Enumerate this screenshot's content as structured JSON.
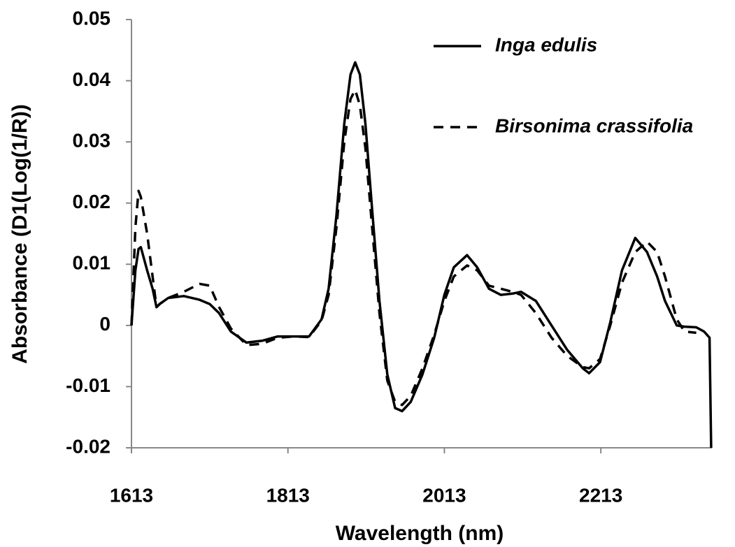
{
  "chart_data": {
    "type": "line",
    "x_label": "Wavelength (nm)",
    "y_label": "Absorbance (D1(Log(1/R))",
    "x": [
      1613,
      1618,
      1622,
      1625,
      1633,
      1640,
      1645,
      1649,
      1660,
      1680,
      1700,
      1713,
      1725,
      1740,
      1760,
      1780,
      1800,
      1820,
      1840,
      1856,
      1865,
      1875,
      1885,
      1893,
      1899,
      1905,
      1912,
      1920,
      1930,
      1940,
      1950,
      1959,
      1970,
      1985,
      2000,
      2013,
      2025,
      2042,
      2055,
      2070,
      2085,
      2100,
      2111,
      2130,
      2150,
      2170,
      2190,
      2198,
      2212,
      2225,
      2240,
      2257,
      2272,
      2285,
      2295,
      2310,
      2320,
      2335,
      2345,
      2352,
      2354
    ],
    "series": [
      {
        "name": "Inga edulis",
        "color": "#000000",
        "dash": false,
        "values": [
          0,
          0.009,
          0.0125,
          0.0128,
          0.009,
          0.006,
          0.003,
          0.0035,
          0.0045,
          0.0048,
          0.0042,
          0.0035,
          0.002,
          -0.001,
          -0.0028,
          -0.0025,
          -0.0018,
          -0.0018,
          -0.0018,
          0.001,
          0.006,
          0.018,
          0.033,
          0.041,
          0.043,
          0.041,
          0.033,
          0.02,
          0.004,
          -0.008,
          -0.0135,
          -0.014,
          -0.0125,
          -0.008,
          -0.002,
          0.005,
          0.0095,
          0.0115,
          0.0095,
          0.006,
          0.005,
          0.0052,
          0.0055,
          0.004,
          0,
          -0.004,
          -0.007,
          -0.0078,
          -0.006,
          0.0005,
          0.009,
          0.0143,
          0.012,
          0.008,
          0.004,
          0,
          -0.0002,
          -0.0003,
          -0.001,
          -0.002,
          -0.02
        ]
      },
      {
        "name": "Birsonima crassifolia",
        "color": "#000000",
        "dash": true,
        "values": [
          0,
          0.016,
          0.022,
          0.021,
          0.015,
          0.008,
          0.003,
          0.0035,
          0.0045,
          0.0055,
          0.0068,
          0.0065,
          0.003,
          -0.0005,
          -0.0032,
          -0.003,
          -0.002,
          -0.0018,
          -0.0019,
          0.0008,
          0.005,
          0.016,
          0.03,
          0.037,
          0.0385,
          0.036,
          0.029,
          0.017,
          0.002,
          -0.009,
          -0.0125,
          -0.013,
          -0.0115,
          -0.007,
          -0.0015,
          0.004,
          0.008,
          0.0098,
          0.009,
          0.0065,
          0.006,
          0.0055,
          0.005,
          0.002,
          -0.002,
          -0.005,
          -0.0068,
          -0.007,
          -0.0055,
          0,
          0.007,
          0.012,
          0.0137,
          0.012,
          0.008,
          0.001,
          -0.001,
          -0.0012,
          null,
          null,
          null
        ]
      }
    ],
    "xlim": [
      1613,
      2355
    ],
    "xticks": [
      1613,
      1813,
      2013,
      2213
    ],
    "ylim": [
      -0.02,
      0.05
    ],
    "yticks": [
      0.05,
      0.04,
      0.03,
      0.02,
      0.01,
      0,
      -0.01,
      -0.02
    ],
    "legend": "upper right",
    "grid": false
  }
}
